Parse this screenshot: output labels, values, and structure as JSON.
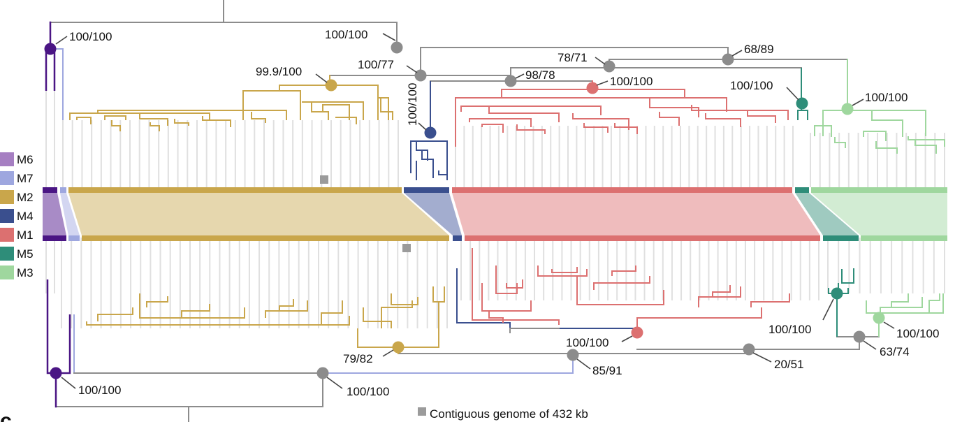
{
  "panel_label": "c",
  "legend": [
    {
      "label": "M6",
      "color": "#a67fc2"
    },
    {
      "label": "M7",
      "color": "#9ea7df"
    },
    {
      "label": "M2",
      "color": "#c9a64b"
    },
    {
      "label": "M4",
      "color": "#3a4f8e"
    },
    {
      "label": "M1",
      "color": "#dc7070"
    },
    {
      "label": "M5",
      "color": "#2e8d79"
    },
    {
      "label": "M3",
      "color": "#9fd79e"
    }
  ],
  "top_tree_support": [
    {
      "clade": "M6",
      "text": "100/100"
    },
    {
      "clade": "root-right",
      "text": "100/100"
    },
    {
      "clade": "M5-M3",
      "text": "68/89"
    },
    {
      "clade": "M1-M5-M3",
      "text": "78/71"
    },
    {
      "clade": "M2-M4-M1",
      "text": "100/77"
    },
    {
      "clade": "M4-M1",
      "text": "98/78"
    },
    {
      "clade": "M2",
      "text": "99.9/100"
    },
    {
      "clade": "M1",
      "text": "100/100"
    },
    {
      "clade": "M4",
      "text": "100/100"
    },
    {
      "clade": "M5",
      "text": "100/100"
    },
    {
      "clade": "M3",
      "text": "100/100"
    }
  ],
  "bottom_tree_support": [
    {
      "clade": "M6",
      "text": "100/100"
    },
    {
      "clade": "root-right",
      "text": "100/100"
    },
    {
      "clade": "M2",
      "text": "79/82"
    },
    {
      "clade": "M2-rest",
      "text": "85/91"
    },
    {
      "clade": "M1",
      "text": "100/100"
    },
    {
      "clade": "M1-M5-M3",
      "text": "20/51"
    },
    {
      "clade": "M5",
      "text": "100/100"
    },
    {
      "clade": "M3",
      "text": "100/100"
    },
    {
      "clade": "M5-M3",
      "text": "63/74"
    }
  ],
  "footnote": "Contiguous genome of 432 kb",
  "colors": {
    "gray": "#8c8c8c",
    "tip": "#e0e0e0",
    "marker": "#9b9b9b"
  }
}
